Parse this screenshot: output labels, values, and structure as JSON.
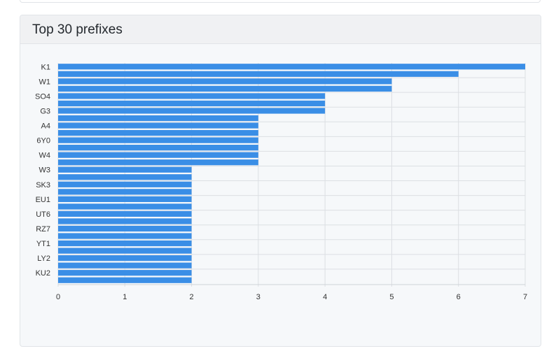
{
  "card": {
    "title": "Top 30 prefixes"
  },
  "chart_data": {
    "type": "bar",
    "orientation": "horizontal",
    "title": "Top 30 prefixes",
    "categories": [
      "K1",
      "",
      "W1",
      "",
      "SO4",
      "",
      "G3",
      "",
      "A4",
      "",
      "6Y0",
      "",
      "W4",
      "",
      "W3",
      "",
      "SK3",
      "",
      "EU1",
      "",
      "UT6",
      "",
      "RZ7",
      "",
      "YT1",
      "",
      "LY2",
      "",
      "KU2",
      ""
    ],
    "values": [
      7,
      6,
      5,
      5,
      4,
      4,
      4,
      3,
      3,
      3,
      3,
      3,
      3,
      3,
      2,
      2,
      2,
      2,
      2,
      2,
      2,
      2,
      2,
      2,
      2,
      2,
      2,
      2,
      2,
      2
    ],
    "xlim": [
      0,
      7
    ],
    "xticks": [
      0,
      1,
      2,
      3,
      4,
      5,
      6,
      7
    ],
    "grid": true,
    "bar_color": "#3a8ee6"
  }
}
